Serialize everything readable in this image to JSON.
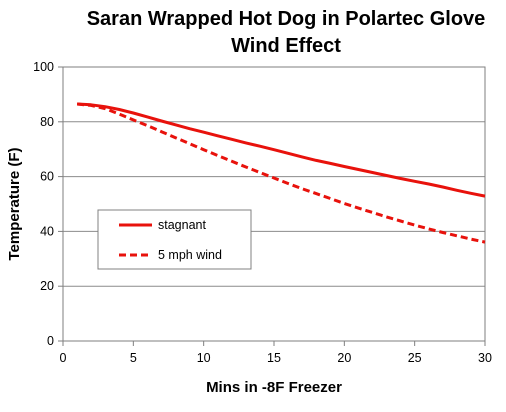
{
  "chart_data": {
    "type": "line",
    "title": [
      "Saran Wrapped Hot Dog in Polartec Glove",
      "Wind Effect"
    ],
    "xlabel": "Mins in -8F Freezer",
    "ylabel": "Temperature (F)",
    "xlim": [
      0,
      30
    ],
    "ylim": [
      0,
      100
    ],
    "xticks": [
      0,
      5,
      10,
      15,
      20,
      25,
      30
    ],
    "yticks": [
      0,
      20,
      40,
      60,
      80,
      100
    ],
    "grid": "horizontal",
    "legend_position": "lower-left",
    "series": [
      {
        "name": "stagnant",
        "color": "#e8120c",
        "style": "solid",
        "x": [
          1,
          2,
          3,
          4,
          5,
          6,
          7,
          8,
          9,
          10,
          11,
          12,
          13,
          14,
          15,
          16,
          17,
          18,
          19,
          20,
          21,
          22,
          23,
          24,
          25,
          26,
          27,
          28,
          29,
          30
        ],
        "y": [
          86.5,
          86.2,
          85.5,
          84.5,
          83.2,
          81.8,
          80.3,
          78.9,
          77.5,
          76.2,
          74.9,
          73.6,
          72.3,
          71.1,
          69.8,
          68.5,
          67.2,
          65.9,
          64.8,
          63.7,
          62.6,
          61.5,
          60.4,
          59.3,
          58.3,
          57.3,
          56.2,
          55.0,
          53.9,
          52.9
        ]
      },
      {
        "name": "5 mph wind",
        "color": "#e8120c",
        "style": "dashed",
        "x": [
          1,
          2,
          3,
          4,
          5,
          6,
          7,
          8,
          9,
          10,
          11,
          12,
          13,
          14,
          15,
          16,
          17,
          18,
          19,
          20,
          21,
          22,
          23,
          24,
          25,
          26,
          27,
          28,
          29,
          30
        ],
        "y": [
          86.5,
          86.0,
          84.8,
          82.8,
          80.7,
          78.6,
          76.4,
          74.2,
          72.0,
          69.8,
          67.7,
          65.6,
          63.5,
          61.5,
          59.5,
          57.5,
          55.6,
          53.8,
          52.0,
          50.2,
          48.5,
          46.9,
          45.3,
          43.8,
          42.3,
          40.9,
          39.6,
          38.4,
          37.2,
          36.1
        ]
      }
    ]
  }
}
